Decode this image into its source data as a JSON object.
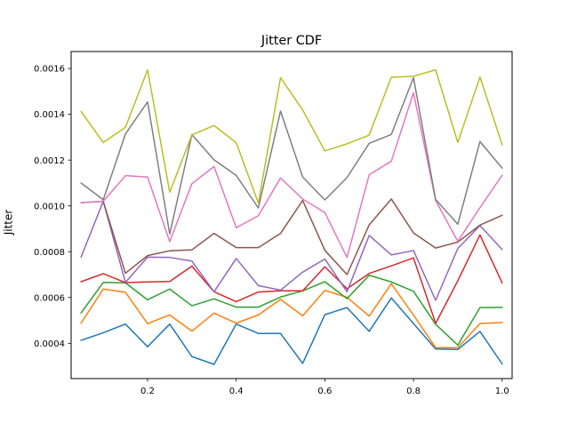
{
  "chart_data": {
    "type": "line",
    "title": "Jitter CDF",
    "xlabel": "",
    "ylabel": "Jitter",
    "xlim": [
      0.0275,
      1.0225
    ],
    "ylim": [
      0.000246,
      0.001674
    ],
    "xticks": [
      0.2,
      0.4,
      0.6,
      0.8,
      1.0
    ],
    "xtick_labels": [
      "0.2",
      "0.4",
      "0.6",
      "0.8",
      "1.0"
    ],
    "yticks": [
      0.0004,
      0.0006,
      0.0008,
      0.001,
      0.0012,
      0.0014,
      0.0016
    ],
    "ytick_labels": [
      "0.0004",
      "0.0006",
      "0.0008",
      "0.0010",
      "0.0012",
      "0.0014",
      "0.0016"
    ],
    "grid": false,
    "legend": "none",
    "x": [
      0.05,
      0.1,
      0.15,
      0.2,
      0.25,
      0.3,
      0.35,
      0.4,
      0.45,
      0.5,
      0.55,
      0.6,
      0.65,
      0.7,
      0.75,
      0.8,
      0.85,
      0.9,
      0.95,
      1.0
    ],
    "series": [
      {
        "color": "#1f77b4",
        "values": [
          0.000413,
          0.000446,
          0.000484,
          0.000385,
          0.000484,
          0.000342,
          0.000308,
          0.000484,
          0.000443,
          0.000443,
          0.000312,
          0.000525,
          0.000556,
          0.000452,
          0.000598,
          0.000486,
          0.000375,
          0.000373,
          0.000452,
          0.00031
        ]
      },
      {
        "color": "#ff7f0e",
        "values": [
          0.000488,
          0.000637,
          0.000623,
          0.000486,
          0.000524,
          0.000453,
          0.000532,
          0.000488,
          0.000524,
          0.000592,
          0.00052,
          0.000631,
          0.000601,
          0.000519,
          0.00066,
          0.000523,
          0.000381,
          0.000381,
          0.000486,
          0.000491
        ]
      },
      {
        "color": "#2ca02c",
        "values": [
          0.000533,
          0.000666,
          0.000664,
          0.00059,
          0.000637,
          0.000564,
          0.000594,
          0.000558,
          0.000558,
          0.000602,
          0.000629,
          0.000669,
          0.000595,
          0.000697,
          0.000668,
          0.000627,
          0.000483,
          0.000392,
          0.000556,
          0.000557
        ]
      },
      {
        "color": "#d62728",
        "values": [
          0.000669,
          0.000704,
          0.000665,
          0.000668,
          0.00067,
          0.000737,
          0.000625,
          0.000582,
          0.000624,
          0.000629,
          0.000629,
          0.000734,
          0.000638,
          0.000705,
          0.000738,
          0.000773,
          0.000487,
          0.000673,
          0.000873,
          0.000664
        ]
      },
      {
        "color": "#9467bd",
        "values": [
          0.000777,
          0.00102,
          0.000666,
          0.000776,
          0.000775,
          0.000759,
          0.000625,
          0.00077,
          0.000652,
          0.000632,
          0.000711,
          0.000768,
          0.000625,
          0.000871,
          0.000786,
          0.000805,
          0.000588,
          0.000814,
          0.000914,
          0.00081
        ]
      },
      {
        "color": "#8c564b",
        "values": [
          0.001014,
          0.00102,
          0.000706,
          0.000783,
          0.000804,
          0.000808,
          0.00088,
          0.000818,
          0.000818,
          0.00088,
          0.001024,
          0.000806,
          0.0007,
          0.000917,
          0.00103,
          0.000882,
          0.000816,
          0.000842,
          0.000916,
          0.000959
        ]
      },
      {
        "color": "#e377c2",
        "values": [
          0.001014,
          0.00102,
          0.001132,
          0.001126,
          0.000844,
          0.001097,
          0.001172,
          0.000905,
          0.000957,
          0.001122,
          0.00103,
          0.000971,
          0.000775,
          0.001136,
          0.001195,
          0.001494,
          0.001024,
          0.000845,
          0.000992,
          0.001134
        ]
      },
      {
        "color": "#7f7f7f",
        "values": [
          0.0011,
          0.001027,
          0.001314,
          0.001454,
          0.000877,
          0.001311,
          0.001201,
          0.001133,
          0.000991,
          0.001414,
          0.001126,
          0.001026,
          0.001124,
          0.001273,
          0.001312,
          0.00156,
          0.001028,
          0.00092,
          0.001281,
          0.001165
        ]
      },
      {
        "color": "#bcbd22",
        "values": [
          0.001412,
          0.001277,
          0.001343,
          0.001594,
          0.00106,
          0.00131,
          0.001351,
          0.001276,
          0.001013,
          0.00156,
          0.001419,
          0.00124,
          0.001271,
          0.001309,
          0.001562,
          0.001566,
          0.001594,
          0.001277,
          0.001563,
          0.001268
        ]
      }
    ]
  }
}
